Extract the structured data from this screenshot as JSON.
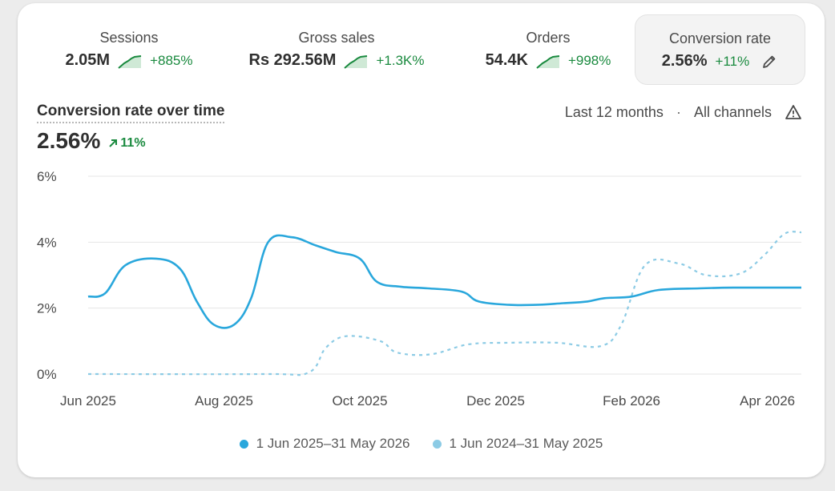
{
  "metrics": [
    {
      "label": "Sessions",
      "value": "2.05M",
      "change": "+885%"
    },
    {
      "label": "Gross sales",
      "value": "Rs 292.56M",
      "change": "+1.3K%"
    },
    {
      "label": "Orders",
      "value": "54.4K",
      "change": "+998%"
    },
    {
      "label": "Conversion rate",
      "value": "2.56%",
      "change": "+11%"
    }
  ],
  "chart_header": {
    "title": "Conversion rate over time",
    "value": "2.56%",
    "change": "11%",
    "period": "Last 12 months",
    "separator": "·",
    "channel": "All channels"
  },
  "colors": {
    "current": "#29a7dc",
    "previous": "#8ccbe5",
    "positive": "#1a8a3f"
  },
  "icons": [
    "sparkline-icon",
    "pencil-icon",
    "arrow-up-right-icon",
    "warning-icon"
  ],
  "chart_data": {
    "type": "line",
    "y_ticks": [
      "6%",
      "4%",
      "2%",
      "0%"
    ],
    "x_ticks": [
      "Jun 2025",
      "Aug 2025",
      "Oct 2025",
      "Dec 2025",
      "Feb 2026",
      "Apr 2026"
    ],
    "ylim": [
      0,
      6
    ],
    "grid": true,
    "legend_position": "bottom-center",
    "series": [
      {
        "name": "1 Jun 2025–31 May 2026",
        "style": "solid",
        "points": [
          [
            0,
            2.35
          ],
          [
            0.25,
            2.45
          ],
          [
            0.55,
            3.3
          ],
          [
            1,
            3.5
          ],
          [
            1.35,
            3.2
          ],
          [
            1.6,
            2.2
          ],
          [
            1.85,
            1.5
          ],
          [
            2.15,
            1.5
          ],
          [
            2.4,
            2.3
          ],
          [
            2.65,
            4.0
          ],
          [
            3.0,
            4.15
          ],
          [
            3.35,
            3.9
          ],
          [
            3.65,
            3.7
          ],
          [
            4.0,
            3.5
          ],
          [
            4.25,
            2.8
          ],
          [
            4.6,
            2.65
          ],
          [
            5.0,
            2.6
          ],
          [
            5.5,
            2.5
          ],
          [
            5.75,
            2.2
          ],
          [
            6.2,
            2.1
          ],
          [
            6.6,
            2.1
          ],
          [
            7.0,
            2.15
          ],
          [
            7.35,
            2.2
          ],
          [
            7.6,
            2.3
          ],
          [
            8.0,
            2.35
          ],
          [
            8.4,
            2.55
          ],
          [
            9.0,
            2.6
          ],
          [
            9.5,
            2.62
          ],
          [
            10.5,
            2.62
          ]
        ]
      },
      {
        "name": "1 Jun 2024–31 May 2025",
        "style": "dashed",
        "points": [
          [
            0,
            0
          ],
          [
            2.6,
            0
          ],
          [
            3.25,
            0.05
          ],
          [
            3.5,
            0.8
          ],
          [
            3.8,
            1.15
          ],
          [
            4.3,
            1.0
          ],
          [
            4.55,
            0.65
          ],
          [
            5.05,
            0.6
          ],
          [
            5.6,
            0.9
          ],
          [
            6.2,
            0.95
          ],
          [
            6.9,
            0.95
          ],
          [
            7.55,
            0.85
          ],
          [
            7.85,
            1.5
          ],
          [
            8.2,
            3.3
          ],
          [
            8.7,
            3.35
          ],
          [
            9.1,
            3.0
          ],
          [
            9.6,
            3.05
          ],
          [
            9.95,
            3.6
          ],
          [
            10.25,
            4.25
          ],
          [
            10.5,
            4.3
          ]
        ]
      }
    ]
  }
}
